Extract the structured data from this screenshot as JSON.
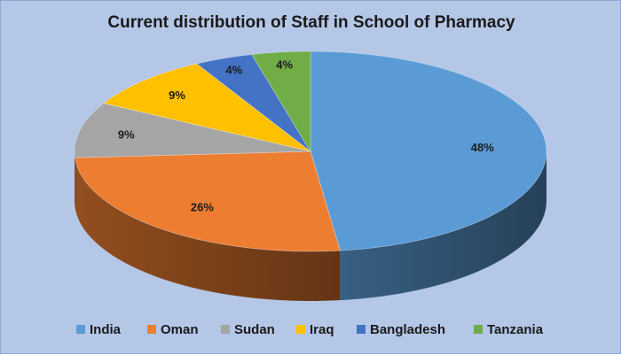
{
  "chart_data": {
    "type": "pie",
    "title": "Current distribution of Staff in School of Pharmacy",
    "style": "3d",
    "categories": [
      "India",
      "Oman",
      "Sudan",
      "Iraq",
      "Bangladesh",
      "Tanzania"
    ],
    "values": [
      48,
      26,
      9,
      9,
      4,
      4
    ],
    "labels": [
      "48%",
      "26%",
      "9%",
      "9%",
      "4%",
      "4%"
    ],
    "colors": [
      "#5b9bd5",
      "#ed7d31",
      "#a5a5a5",
      "#ffc000",
      "#4472c4",
      "#70ad47"
    ],
    "legend_position": "bottom"
  }
}
